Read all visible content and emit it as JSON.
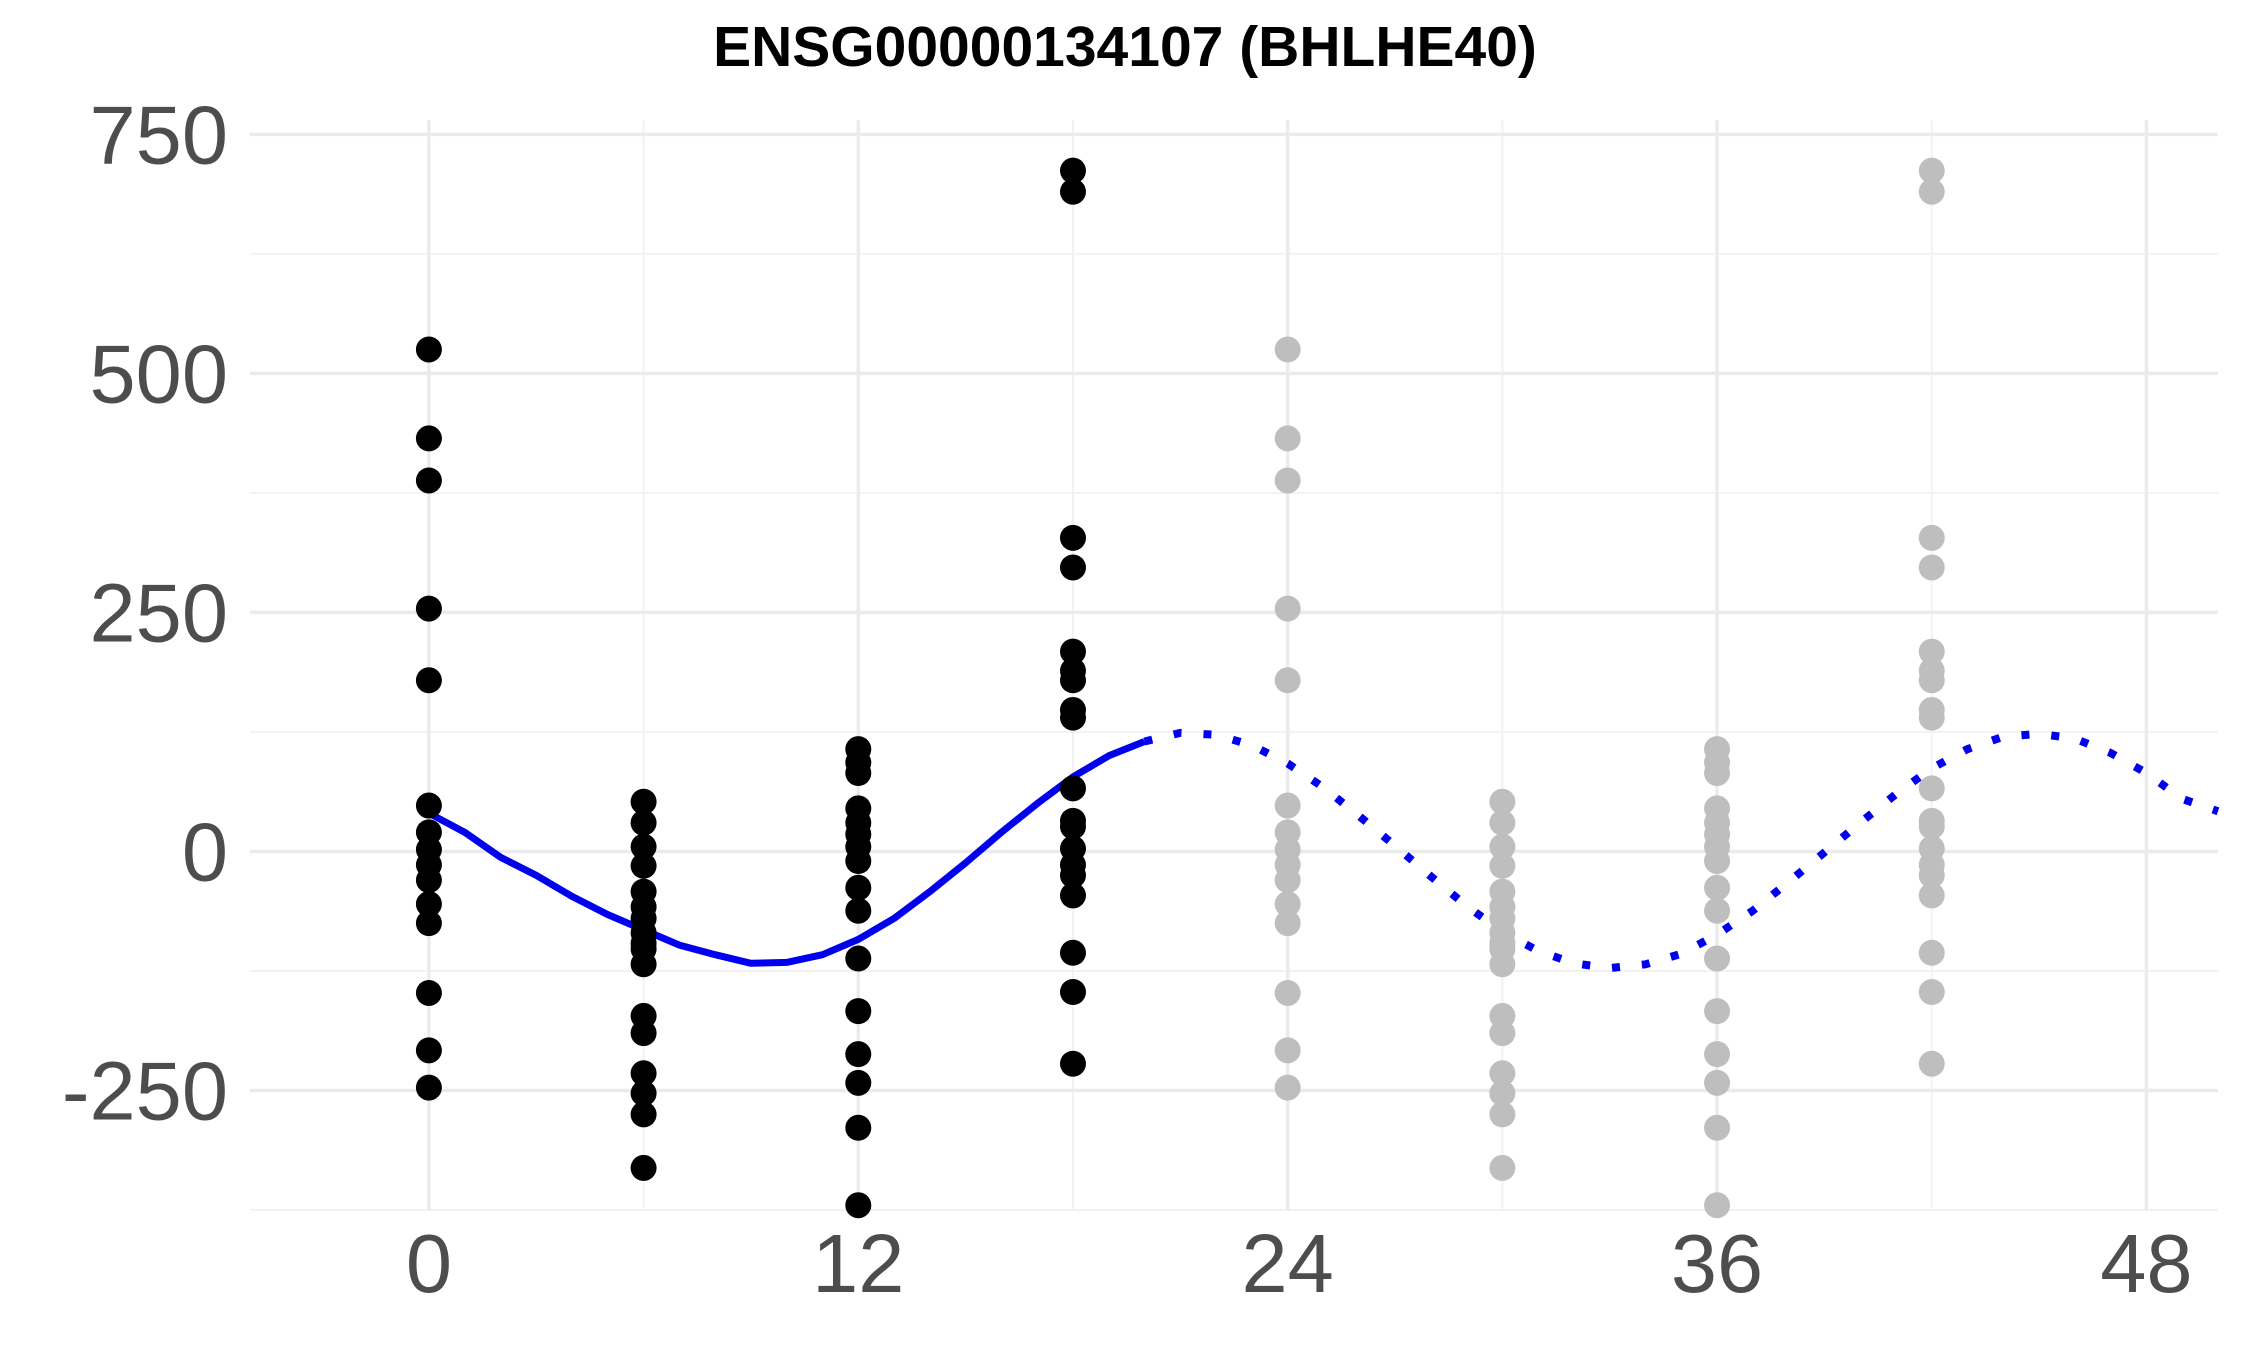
{
  "chart_data": {
    "type": "scatter",
    "title": "ENSG00000134107 (BHLHE40)",
    "xlabel": "",
    "ylabel": "",
    "xlim": [
      -5,
      50
    ],
    "ylim": [
      -375,
      765
    ],
    "x_ticks": [
      0,
      12,
      24,
      36,
      48
    ],
    "x_tick_labels": [
      "0",
      "12",
      "24",
      "36",
      "48"
    ],
    "y_ticks": [
      -250,
      0,
      250,
      500,
      750
    ],
    "y_tick_labels": [
      "-250",
      "0",
      "250",
      "500",
      "750"
    ],
    "grid": true,
    "legend": "none",
    "colors": {
      "observed": "#000000",
      "repeated": "#bebebe",
      "fit": "#0000ee",
      "grid_major": "#ebebeb",
      "grid_minor": "#f2f2f2",
      "tick_text": "#4d4d4d"
    },
    "points": [
      {
        "x": 0,
        "values": [
          525,
          432,
          388,
          254,
          179,
          48,
          20,
          2,
          -14,
          -30,
          -55,
          -75,
          -148,
          -208,
          -247
        ]
      },
      {
        "x": 6,
        "values": [
          52,
          30,
          5,
          -15,
          -42,
          -58,
          -70,
          -85,
          -96,
          -102,
          -118,
          -172,
          -190,
          -232,
          -253,
          -275,
          -331
        ]
      },
      {
        "x": 12,
        "values": [
          107,
          93,
          82,
          45,
          30,
          18,
          5,
          -10,
          -38,
          -62,
          -112,
          -167,
          -212,
          -242,
          -289,
          -370
        ]
      },
      {
        "x": 18,
        "values": [
          712,
          690,
          328,
          297,
          209,
          189,
          179,
          148,
          140,
          66,
          32,
          26,
          3,
          -14,
          -25,
          -46,
          -106,
          -147,
          -222
        ]
      }
    ],
    "repeat_offset": 24,
    "fit_solid": [
      [
        0,
        40
      ],
      [
        1,
        20
      ],
      [
        2,
        -6
      ],
      [
        3,
        -25
      ],
      [
        4,
        -47
      ],
      [
        5,
        -66
      ],
      [
        6,
        -82
      ],
      [
        7,
        -98
      ],
      [
        8,
        -108
      ],
      [
        9,
        -117
      ],
      [
        10,
        -116
      ],
      [
        11,
        -108
      ],
      [
        12,
        -92
      ],
      [
        13,
        -70
      ],
      [
        14,
        -42
      ],
      [
        15,
        -12
      ],
      [
        16,
        20
      ],
      [
        17,
        50
      ],
      [
        18,
        78
      ],
      [
        19,
        100
      ],
      [
        20,
        115
      ]
    ],
    "fit_dotted": [
      [
        20,
        115
      ],
      [
        21,
        124
      ],
      [
        22,
        122
      ],
      [
        23,
        111
      ],
      [
        24,
        92
      ],
      [
        25,
        67
      ],
      [
        26,
        37
      ],
      [
        27,
        6
      ],
      [
        28,
        -26
      ],
      [
        29,
        -57
      ],
      [
        30,
        -84
      ],
      [
        31,
        -104
      ],
      [
        32,
        -117
      ],
      [
        33,
        -122
      ],
      [
        34,
        -118
      ],
      [
        35,
        -107
      ],
      [
        36,
        -87
      ],
      [
        37,
        -62
      ],
      [
        38,
        -32
      ],
      [
        39,
        -1
      ],
      [
        40,
        30
      ],
      [
        41,
        60
      ],
      [
        42,
        87
      ],
      [
        43,
        107
      ],
      [
        44,
        120
      ],
      [
        45,
        123
      ],
      [
        46,
        118
      ],
      [
        47,
        103
      ],
      [
        48,
        82
      ],
      [
        49,
        55
      ],
      [
        50,
        42
      ]
    ]
  }
}
